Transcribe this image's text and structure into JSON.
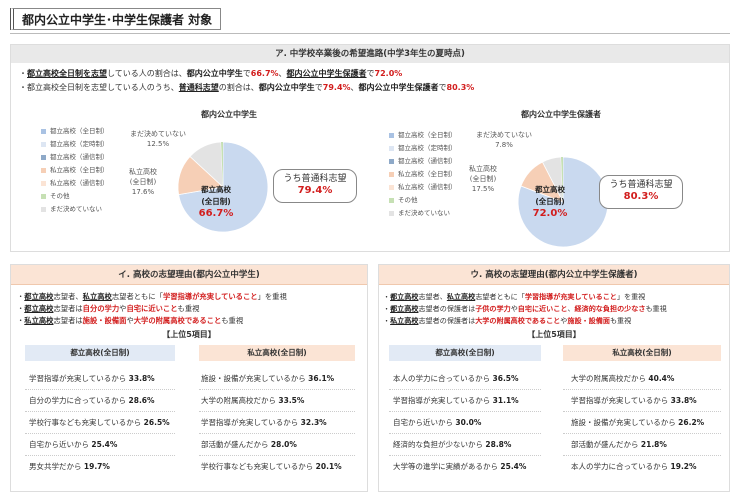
{
  "header": {
    "title": "都内公立中学生･中学生保護者 対象"
  },
  "top": {
    "title": "ア. 中学校卒業後の希望進路(中学3年生の夏時点)",
    "bullet1": {
      "pre": "・",
      "a": "都立高校全日制を志望",
      "b": "している人の割合は、",
      "c": "都内公立中学生",
      "d": "で",
      "e": "66.7%",
      "f": "、",
      "g": "都内公立中学生保護者",
      "h": "で",
      "i": "72.0%"
    },
    "bullet2": {
      "pre": "・",
      "a": "都立高校全日制を志望している人のうち、",
      "b": "普通科志望",
      "c": "の割合は、",
      "d": "都内公立中学生",
      "e": "で",
      "f": "79.4%",
      "g": "、",
      "h": "都内公立中学生保護者",
      "i": "で",
      "j": "80.3%"
    },
    "legend": [
      "都立高校（全日制）",
      "都立高校（定時制）",
      "都立高校（通信制）",
      "私立高校（全日制）",
      "私立高校（通信制）",
      "その他",
      "まだ決めていない"
    ],
    "charts": [
      {
        "title": "都内公立中学生",
        "inner_label": "都立高校",
        "inner_sub": "(全日制)",
        "inner_pct": "66.7%",
        "private_label": "私立高校",
        "private_sub": "(全日制)",
        "private_pct": "17.6%",
        "undecided_label": "まだ決めていない",
        "undecided_pct": "12.5%",
        "callout_label": "うち普通科志望",
        "callout_pct": "79.4%"
      },
      {
        "title": "都内公立中学生保護者",
        "inner_label": "都立高校",
        "inner_sub": "(全日制)",
        "inner_pct": "72.0%",
        "private_label": "私立高校",
        "private_sub": "(全日制)",
        "private_pct": "17.5%",
        "undecided_label": "まだ決めていない",
        "undecided_pct": "7.8%",
        "callout_label": "うち普通科志望",
        "callout_pct": "80.3%"
      }
    ],
    "colors": {
      "toritsu": "#c9d9ef",
      "toritsu_dark": "#a9c2e3",
      "private": "#f6cfb6",
      "undecided": "#e3e3e3",
      "other": "#c6e0b4"
    }
  },
  "left": {
    "title": "イ. 高校の志望理由(都内公立中学生)",
    "b1": {
      "p": "・",
      "a": "都立高校",
      "b": "志望者、",
      "c": "私立高校",
      "d": "志望者ともに「",
      "e": "学習指導が充実していること",
      "f": "」を重視"
    },
    "b2": {
      "p": "・",
      "a": "都立高校",
      "b": "志望者は",
      "c": "自分の学力",
      "d": "や",
      "e": "自宅に近いこと",
      "f": "も重視"
    },
    "b3": {
      "p": "・",
      "a": "私立高校",
      "b": "志望者は",
      "c": "施設・設備面",
      "d": "や",
      "e": "大学の附属高校であること",
      "f": "も重視"
    },
    "top5": "【上位5項目】",
    "col1": {
      "head": "都立高校(全日制)",
      "rows": [
        {
          "t": "学習指導が充実しているから",
          "v": "33.8%"
        },
        {
          "t": "自分の学力に合っているから",
          "v": "28.6%"
        },
        {
          "t": "学校行事なども充実しているから",
          "v": "26.5%"
        },
        {
          "t": "自宅から近いから",
          "v": "25.4%"
        },
        {
          "t": "男女共学だから",
          "v": "19.7%"
        }
      ]
    },
    "col2": {
      "head": "私立高校(全日制)",
      "rows": [
        {
          "t": "施設・設備が充実しているから",
          "v": "36.1%"
        },
        {
          "t": "大学の附属高校だから",
          "v": "33.5%"
        },
        {
          "t": "学習指導が充実しているから",
          "v": "32.3%"
        },
        {
          "t": "部活動が盛んだから",
          "v": "28.0%"
        },
        {
          "t": "学校行事なども充実しているから",
          "v": "20.1%"
        }
      ]
    }
  },
  "right": {
    "title": "ウ. 高校の志望理由(都内公立中学生保護者)",
    "b1": {
      "p": "・",
      "a": "都立高校",
      "b": "志望者、",
      "c": "私立高校",
      "d": "志望者ともに「",
      "e": "学習指導が充実していること",
      "f": "」を重視"
    },
    "b2": {
      "p": "・",
      "a": "都立高校",
      "b": "志望者の保護者は",
      "c": "子供の学力",
      "d": "や",
      "e": "自宅に近いこと",
      "f": "、",
      "g": "経済的な負担の少なさ",
      "h": "も重視"
    },
    "b3": {
      "p": "・",
      "a": "私立高校",
      "b": "志望者の保護者は",
      "c": "大学の附属高校であること",
      "d": "や",
      "e": "施設・設備面",
      "f": "も重視"
    },
    "top5": "【上位5項目】",
    "col1": {
      "head": "都立高校(全日制)",
      "rows": [
        {
          "t": "本人の学力に合っているから",
          "v": "36.5%"
        },
        {
          "t": "学習指導が充実しているから",
          "v": "31.1%"
        },
        {
          "t": "自宅から近いから",
          "v": "30.0%"
        },
        {
          "t": "経済的な負担が少ないから",
          "v": "28.8%"
        },
        {
          "t": "大学等の進学に実績があるから",
          "v": "25.4%"
        }
      ]
    },
    "col2": {
      "head": "私立高校(全日制)",
      "rows": [
        {
          "t": "大学の附属高校だから",
          "v": "40.4%"
        },
        {
          "t": "学習指導が充実しているから",
          "v": "33.8%"
        },
        {
          "t": "施設・設備が充実しているから",
          "v": "26.2%"
        },
        {
          "t": "部活動が盛んだから",
          "v": "21.8%"
        },
        {
          "t": "本人の学力に合っているから",
          "v": "19.2%"
        }
      ]
    }
  }
}
